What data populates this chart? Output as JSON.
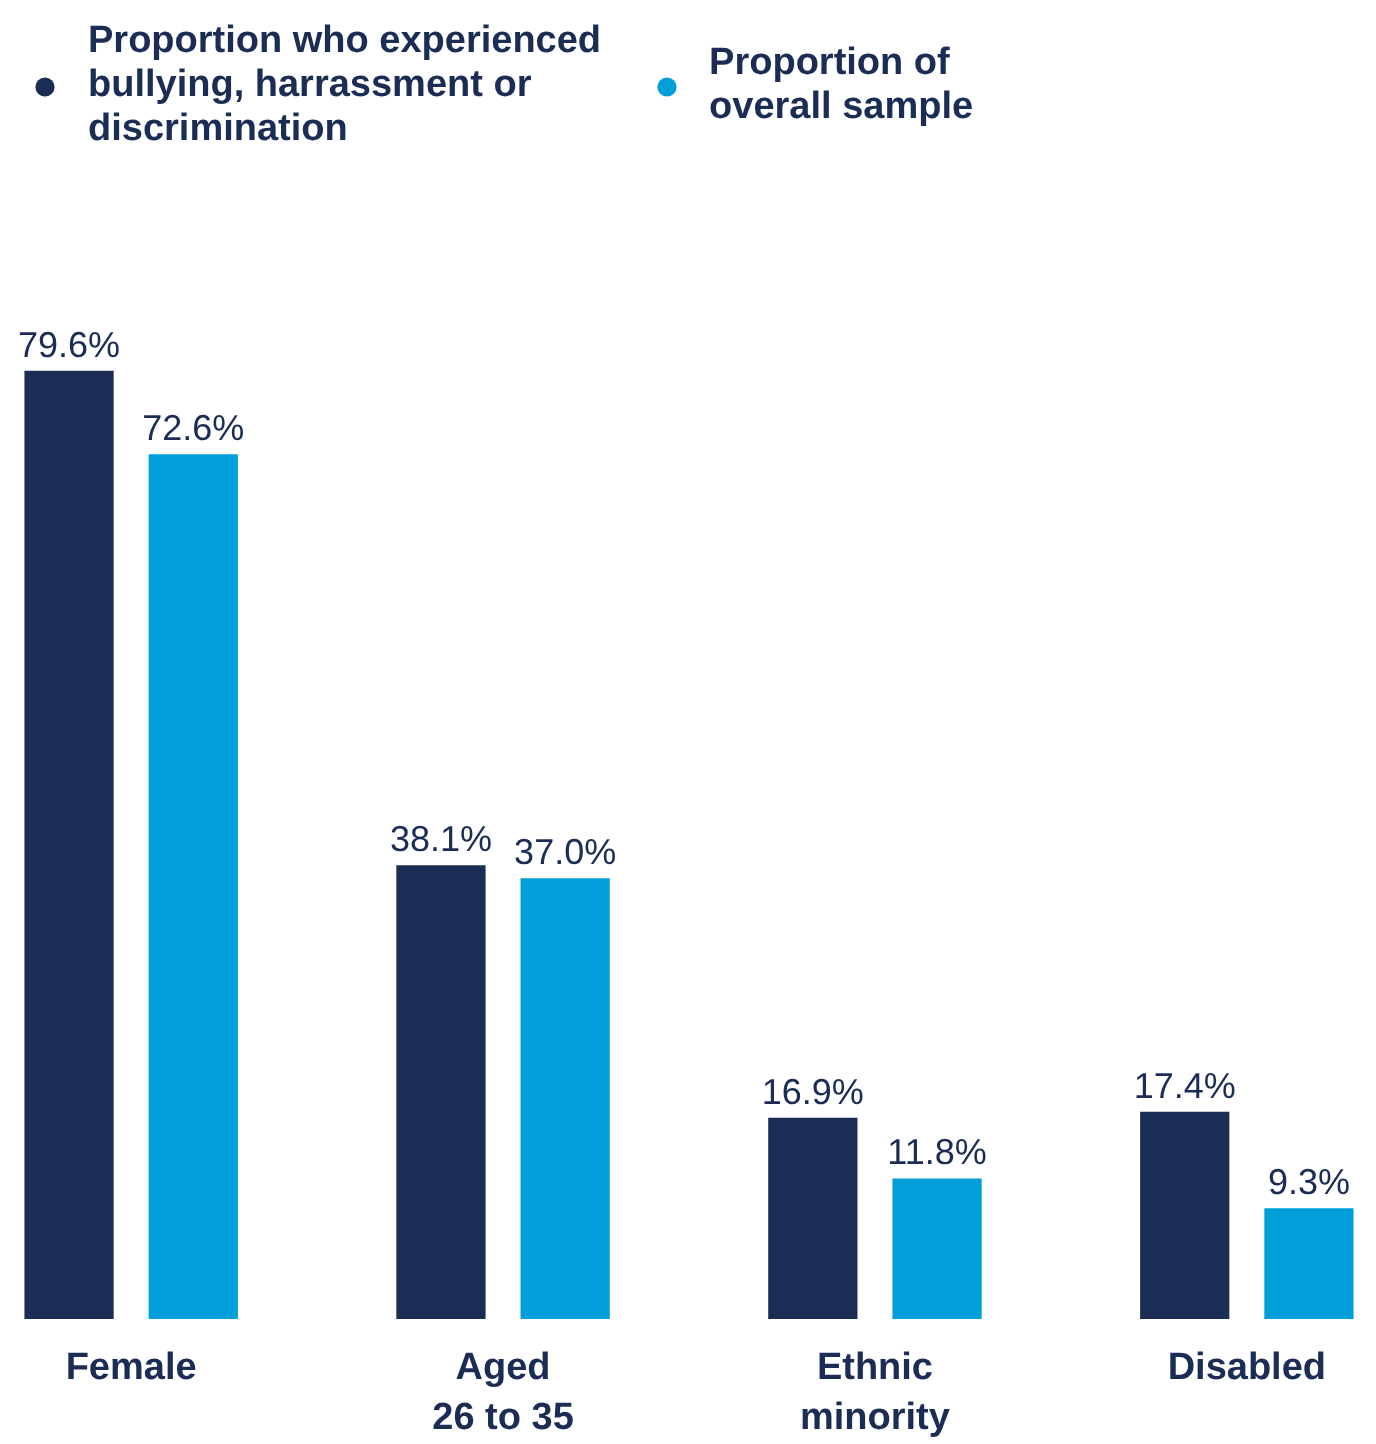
{
  "chart_data": {
    "type": "bar",
    "categories": [
      "Female",
      "Aged\n26 to 35",
      "Ethnic\nminority",
      "Disabled"
    ],
    "series": [
      {
        "name": "Proportion who experienced bullying, harrassment or discrimination",
        "color": "#1b2d55",
        "values": [
          79.6,
          38.1,
          16.9,
          17.4
        ],
        "value_labels": [
          "79.6%",
          "38.1%",
          "16.9%",
          "17.4%"
        ]
      },
      {
        "name": "Proportion of overall sample",
        "color": "#009fd9",
        "values": [
          72.6,
          37.0,
          11.8,
          9.3
        ],
        "value_labels": [
          "72.6%",
          "37.0%",
          "11.8%",
          "9.3%"
        ]
      }
    ],
    "legend": "top left",
    "grid": false
  }
}
